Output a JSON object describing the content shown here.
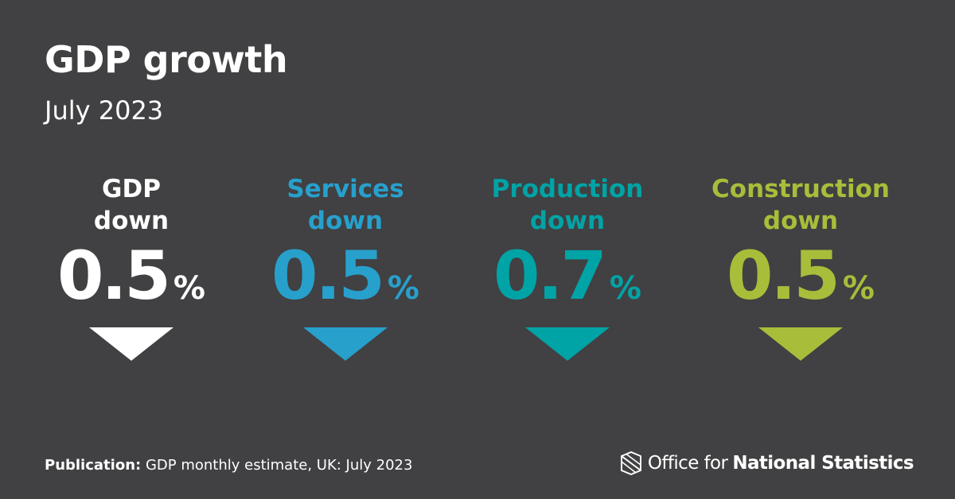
{
  "header": {
    "title": "GDP growth",
    "subtitle": "July 2023"
  },
  "tiles": [
    {
      "line1": "GDP",
      "line2": "down",
      "value": "0.5",
      "unit": "%",
      "color": "#ffffff",
      "direction": "down"
    },
    {
      "line1": "Services",
      "line2": "down",
      "value": "0.5",
      "unit": "%",
      "color": "#27a0cc",
      "direction": "down"
    },
    {
      "line1": "Production",
      "line2": "down",
      "value": "0.7",
      "unit": "%",
      "color": "#00a3a6",
      "direction": "down"
    },
    {
      "line1": "Construction",
      "line2": "down",
      "value": "0.5",
      "unit": "%",
      "color": "#a8bd3a",
      "direction": "down"
    }
  ],
  "footer": {
    "publication_label": "Publication:",
    "publication_text": "GDP monthly estimate, UK: July 2023"
  },
  "logo": {
    "icon": "ons-logo-icon",
    "text_light": "Office for",
    "text_bold": "National Statistics"
  },
  "colors": {
    "background": "#414042",
    "gdp": "#ffffff",
    "services": "#27a0cc",
    "production": "#00a3a6",
    "construction": "#a8bd3a"
  }
}
